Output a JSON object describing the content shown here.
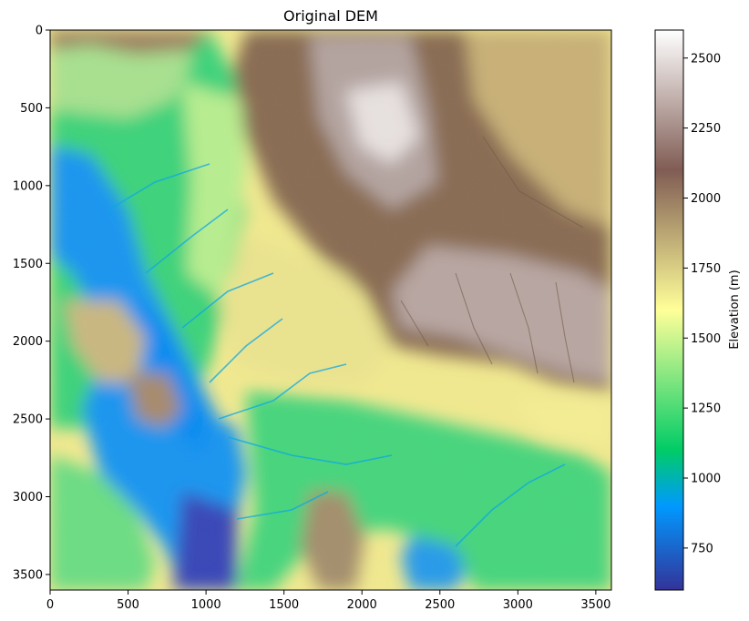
{
  "chart_data": {
    "type": "heatmap",
    "title": "Original DEM",
    "xlabel": "",
    "ylabel": "",
    "xlim": [
      0,
      3600
    ],
    "ylim": [
      3600,
      0
    ],
    "x_ticks": [
      0,
      500,
      1000,
      1500,
      2000,
      2500,
      3000,
      3500
    ],
    "y_ticks": [
      0,
      500,
      1000,
      1500,
      2000,
      2500,
      3000,
      3500
    ],
    "colormap": "terrain",
    "colorbar": {
      "label": "Elevation (m)",
      "range": [
        600,
        2600
      ],
      "ticks": [
        750,
        1000,
        1250,
        1500,
        1750,
        2000,
        2250,
        2500
      ]
    },
    "colors": {
      "deep_blue": "#333399",
      "blue": "#0a8ff5",
      "green": "#0ccc6c",
      "light_green": "#a0ea88",
      "yellow": "#fdfd98",
      "tan": "#c9b37f",
      "brown": "#80664e",
      "grey": "#b09d99",
      "white": "#ffffff"
    }
  }
}
